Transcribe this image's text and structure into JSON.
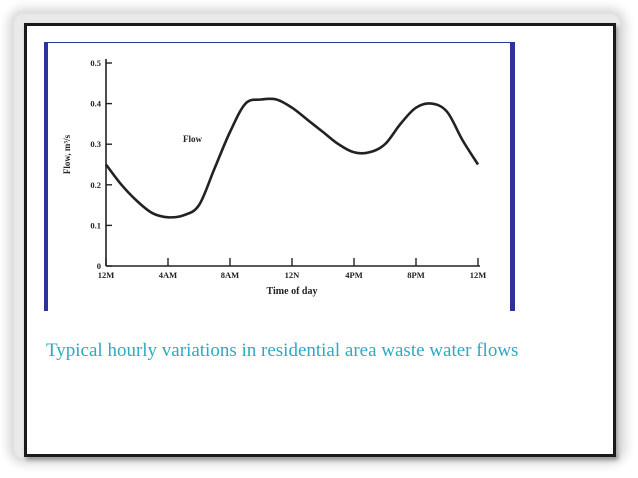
{
  "colors": {
    "frame": "#1a1a1a",
    "figure_border": "#2e3399",
    "caption": "#2fa8c8",
    "ink": "#222222"
  },
  "caption": "Typical hourly variations in residential area waste water flows",
  "chart_data": {
    "type": "line",
    "title": "",
    "xlabel": "Time of day",
    "ylabel": "Flow, m³/s",
    "x_tick_labels": [
      "12M",
      "4AM",
      "8AM",
      "12N",
      "4PM",
      "8PM",
      "12M"
    ],
    "y_tick_labels": [
      "0",
      "0.1",
      "0.2",
      "0.3",
      "0.4",
      "0.5"
    ],
    "y_ticks": [
      0,
      0.1,
      0.2,
      0.3,
      0.4,
      0.5
    ],
    "xlim": [
      0,
      24
    ],
    "ylim": [
      0,
      0.5
    ],
    "grid": false,
    "series": [
      {
        "name": "Flow",
        "x": [
          0,
          1,
          2,
          3,
          4,
          5,
          6,
          7,
          8,
          9,
          10,
          11,
          12,
          13,
          14,
          15,
          16,
          17,
          18,
          19,
          20,
          21,
          22,
          23,
          24
        ],
        "y": [
          0.25,
          0.2,
          0.16,
          0.13,
          0.12,
          0.125,
          0.15,
          0.24,
          0.33,
          0.4,
          0.41,
          0.41,
          0.39,
          0.36,
          0.33,
          0.3,
          0.28,
          0.28,
          0.3,
          0.35,
          0.39,
          0.4,
          0.38,
          0.31,
          0.25
        ]
      }
    ]
  }
}
